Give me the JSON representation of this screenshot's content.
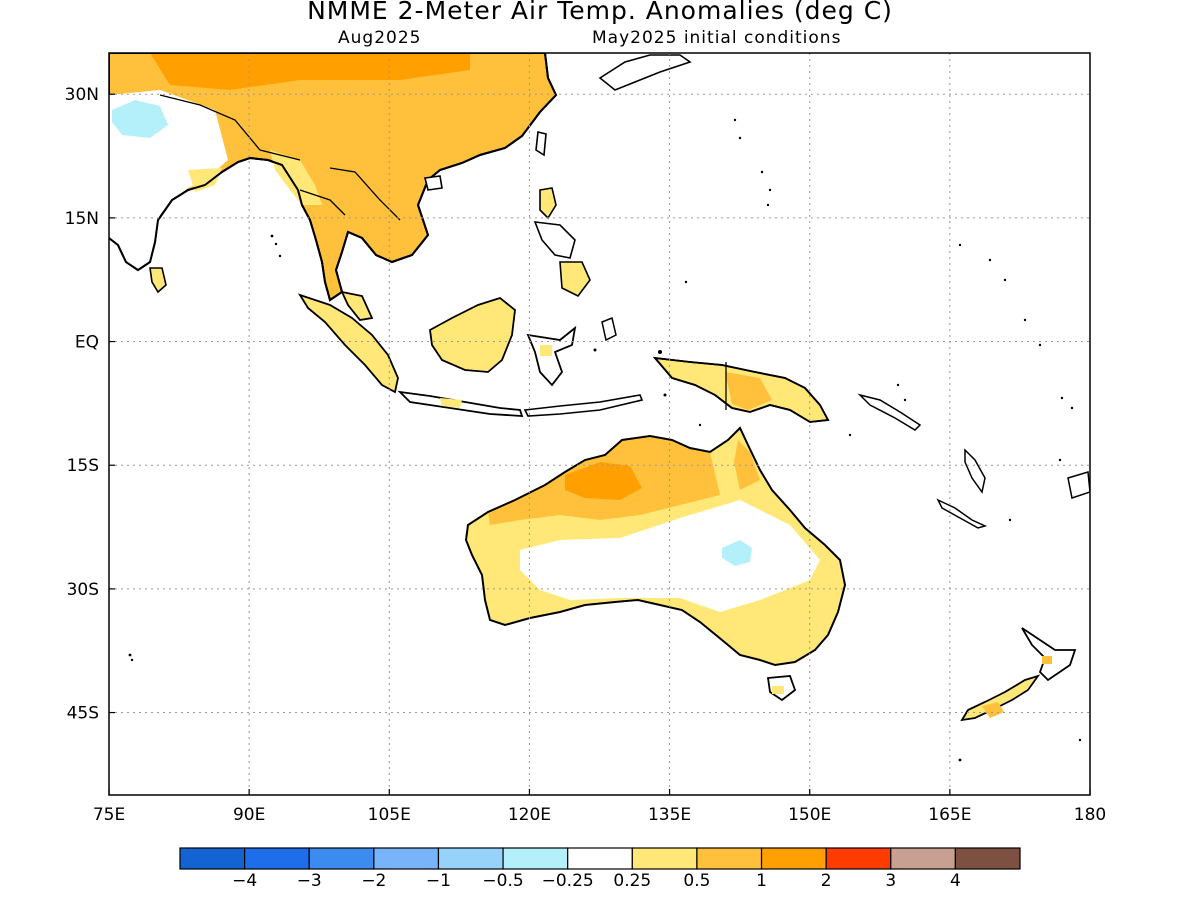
{
  "title": "NMME 2-Meter Air Temp. Anomalies (deg C)",
  "subtitle_left": "Aug2025",
  "subtitle_right": "May2025 initial conditions",
  "lon_ticks": [
    {
      "value": 75,
      "label": "75E"
    },
    {
      "value": 90,
      "label": "90E"
    },
    {
      "value": 105,
      "label": "105E"
    },
    {
      "value": 120,
      "label": "120E"
    },
    {
      "value": 135,
      "label": "135E"
    },
    {
      "value": 150,
      "label": "150E"
    },
    {
      "value": 165,
      "label": "165E"
    },
    {
      "value": 180,
      "label": "180"
    }
  ],
  "lat_ticks": [
    {
      "value": 30,
      "label": "30N"
    },
    {
      "value": 15,
      "label": "15N"
    },
    {
      "value": 0,
      "label": "EQ"
    },
    {
      "value": -15,
      "label": "15S"
    },
    {
      "value": -30,
      "label": "30S"
    },
    {
      "value": -45,
      "label": "45S"
    }
  ],
  "extent": {
    "lon_min": 75,
    "lon_max": 180,
    "lat_min": -55,
    "lat_max": 35
  },
  "colorbar": {
    "colors": [
      "#1463d2",
      "#1e6eeb",
      "#3c8cf0",
      "#78b4fa",
      "#96d2fa",
      "#b4f0fa",
      "#ffffff",
      "#ffe878",
      "#ffc03c",
      "#ffa000",
      "#ff3c00",
      "#c8a092",
      "#7d5042"
    ],
    "labels": [
      "−4",
      "−3",
      "−2",
      "−1",
      "−0.5",
      "−0.25",
      "0.25",
      "0.5",
      "1",
      "2",
      "3",
      "4"
    ]
  }
}
